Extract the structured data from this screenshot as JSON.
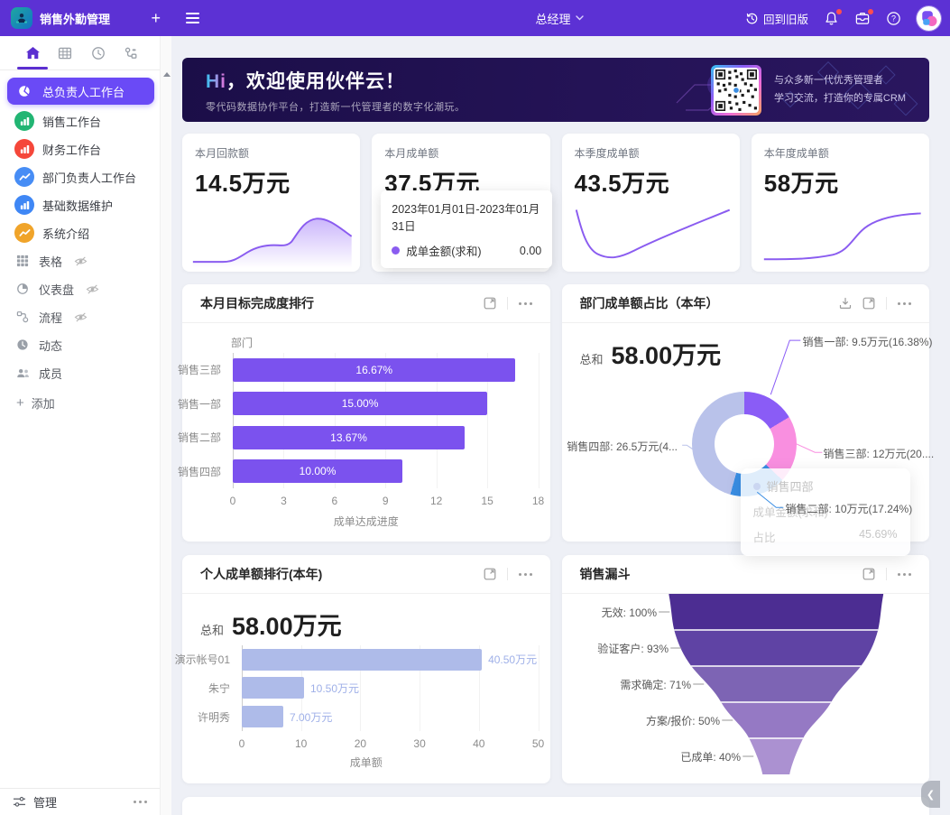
{
  "header": {
    "app_title": "销售外勤管理",
    "role_selector": "总经理",
    "back_to_old_label": "回到旧版"
  },
  "sidebar": {
    "items": [
      {
        "label": "总负责人工作台",
        "selected": true,
        "icon": "pie-chart-icon",
        "icon_bg": "#ffffff"
      },
      {
        "label": "销售工作台",
        "selected": false,
        "icon": "bar-chart-icon",
        "icon_bg": "#22b573"
      },
      {
        "label": "财务工作台",
        "selected": false,
        "icon": "bar-chart-icon",
        "icon_bg": "#f5473a"
      },
      {
        "label": "部门负责人工作台",
        "selected": false,
        "icon": "line-chart-icon",
        "icon_bg": "#478df5"
      },
      {
        "label": "基础数据维护",
        "selected": false,
        "icon": "bar-chart-icon",
        "icon_bg": "#3f87f5"
      },
      {
        "label": "系统介绍",
        "selected": false,
        "icon": "line-chart-icon",
        "icon_bg": "#f0a42a"
      }
    ],
    "tool_items": [
      {
        "label": "表格",
        "icon": "table-grid-icon",
        "hidden_eye": true
      },
      {
        "label": "仪表盘",
        "icon": "dashboard-pie-icon",
        "hidden_eye": true
      },
      {
        "label": "流程",
        "icon": "flow-icon",
        "hidden_eye": true
      },
      {
        "label": "动态",
        "icon": "activity-clock-icon",
        "hidden_eye": false
      },
      {
        "label": "成员",
        "icon": "members-icon",
        "hidden_eye": false
      }
    ],
    "add_label": "添加",
    "manage_label": "管理"
  },
  "banner": {
    "greeting_hi": "Hi",
    "greeting_rest": "，欢迎使用伙伴云！",
    "subtitle": "零代码数据协作平台，打造新一代管理者的数字化潮玩。",
    "qr_caption_line1": "与众多新一代优秀管理者",
    "qr_caption_line2": "学习交流，打造你的专属CRM"
  },
  "stats": [
    {
      "label": "本月回款额",
      "value": "14.5万元"
    },
    {
      "label": "本月成单额",
      "value": "37.5万元",
      "tooltip": {
        "date_range": "2023年01月01日-2023年01月31日",
        "series": "成单金额(求和)",
        "value": "0.00"
      }
    },
    {
      "label": "本季度成单额",
      "value": "43.5万元"
    },
    {
      "label": "本年度成单额",
      "value": "58万元"
    }
  ],
  "cards": {
    "dept_target": {
      "title": "本月目标完成度排行"
    },
    "dept_share": {
      "title": "部门成单额占比（本年）",
      "total_label": "总和",
      "total_value": "58.00万元"
    },
    "personal_rank": {
      "title": "个人成单额排行(本年)",
      "total_label": "总和",
      "total_value": "58.00万元"
    },
    "funnel": {
      "title": "销售漏斗"
    }
  },
  "chart_data": [
    {
      "id": "dept_target",
      "type": "bar",
      "orientation": "horizontal",
      "title": "本月目标完成度排行",
      "categories": [
        "销售三部",
        "销售一部",
        "销售二部",
        "销售四部"
      ],
      "values": [
        16.67,
        15.0,
        13.67,
        10.0
      ],
      "bar_labels": [
        "16.67%",
        "15.00%",
        "13.67%",
        "10.00%"
      ],
      "xlabel": "成单达成进度",
      "ylabel": "部门",
      "xlim": [
        0,
        18
      ],
      "xticks": [
        0,
        3,
        6,
        9,
        12,
        15,
        18
      ],
      "bar_color": "#7b52ee",
      "grid": true,
      "label_position": "inside"
    },
    {
      "id": "dept_share",
      "type": "pie",
      "title": "部门成单额占比（本年）",
      "total": "58.00万元",
      "slices": [
        {
          "name": "销售一部",
          "value": 9.5,
          "pct": 16.38,
          "label": "销售一部: 9.5万元(16.38%)",
          "color": "#8a5cf6"
        },
        {
          "name": "销售三部",
          "value": 12,
          "pct": 20.69,
          "label": "销售三部: 12万元(20....",
          "color": "#f98fe0"
        },
        {
          "name": "销售二部",
          "value": 10,
          "pct": 17.24,
          "label": "销售二部: 10万元(17.24%)",
          "color": "#3a8ee4"
        },
        {
          "name": "销售四部",
          "value": 26.5,
          "pct": 45.69,
          "label": "销售四部: 26.5万元(4...",
          "color": "#b9c2ea"
        }
      ],
      "tooltip": {
        "title": "销售四部",
        "series_label": "成单金额(求和)",
        "ratio_label": "占比",
        "ratio_value": "45.69%"
      }
    },
    {
      "id": "personal_rank",
      "type": "bar",
      "orientation": "horizontal",
      "title": "个人成单额排行(本年)",
      "categories": [
        "演示帐号01",
        "朱宁",
        "许明秀"
      ],
      "values": [
        40.5,
        10.5,
        7.0
      ],
      "bar_labels": [
        "40.50万元",
        "10.50万元",
        "7.00万元"
      ],
      "xlabel": "成单额",
      "xlim": [
        0,
        50
      ],
      "xticks": [
        0,
        10,
        20,
        30,
        40,
        50
      ],
      "bar_color": "#aebbe9",
      "grid": true,
      "label_position": "outside"
    },
    {
      "id": "funnel",
      "type": "funnel",
      "title": "销售漏斗",
      "stages": [
        {
          "label": "无效: 100%",
          "pct": 100,
          "color": "#4c2d92"
        },
        {
          "label": "验证客户: 93%",
          "pct": 93,
          "color": "#5f43a4"
        },
        {
          "label": "需求确定: 71%",
          "pct": 71,
          "color": "#7d64b4"
        },
        {
          "label": "方案/报价: 50%",
          "pct": 50,
          "color": "#9579c4"
        },
        {
          "label": "已成单: 40%",
          "pct": 40,
          "color": "#ab91d1"
        }
      ]
    }
  ]
}
